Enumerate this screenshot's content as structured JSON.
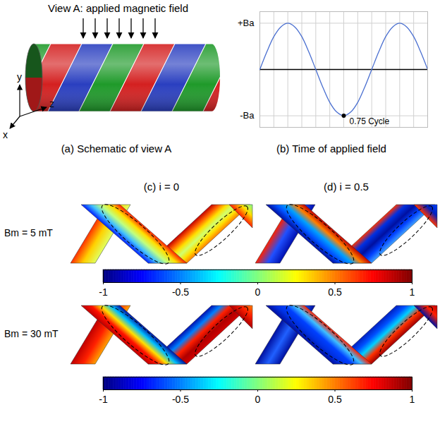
{
  "schematic": {
    "heading": "View A: applied magnetic field",
    "axis_labels": [
      "y",
      "z",
      "x"
    ],
    "caption": "(a) Schematic of view A"
  },
  "chart_data": {
    "type": "line",
    "title": "(b) Time of applied field",
    "x": [
      0,
      0.0625,
      0.125,
      0.1875,
      0.25,
      0.3125,
      0.375,
      0.4375,
      0.5,
      0.5625,
      0.625,
      0.6875,
      0.75,
      0.8125,
      0.875,
      0.9375,
      1,
      1.0625,
      1.125,
      1.1875,
      1.25,
      1.3125,
      1.375,
      1.4375,
      1.5
    ],
    "values": [
      0,
      0.38,
      0.71,
      0.92,
      1,
      0.92,
      0.71,
      0.38,
      0,
      -0.38,
      -0.71,
      -0.92,
      -1,
      -0.92,
      -0.71,
      -0.38,
      0,
      0.38,
      0.71,
      0.92,
      1,
      0.92,
      0.71,
      0.38,
      0
    ],
    "color": "#4a6fd0",
    "xlim": [
      0,
      1.5
    ],
    "ylim": [
      -1.25,
      1.25
    ],
    "xticks": [
      0,
      0.125,
      0.25,
      0.375,
      0.5,
      0.625,
      0.75,
      0.875,
      1,
      1.125,
      1.25,
      1.375,
      1.5
    ],
    "yticks": [
      {
        "value": 1,
        "label": "+Ba"
      },
      {
        "value": -1,
        "label": "-Ba"
      }
    ],
    "grid": true,
    "tick_labels": "y",
    "annotations": [
      {
        "x": 0.75,
        "y": -1,
        "text": "0.75 Cycle"
      }
    ]
  },
  "results": {
    "columns": [
      "(c) i = 0",
      "(d) i = 0.5"
    ],
    "rows": [
      {
        "label": "Bm = 5 mT",
        "colorbar": {
          "range": [
            -1,
            1
          ],
          "ticks": [
            -1,
            -0.5,
            0,
            0.5,
            1
          ]
        }
      },
      {
        "label": "Bm = 30 mT",
        "colorbar": {
          "range": [
            -1,
            1
          ],
          "ticks": [
            -1,
            -0.5,
            0,
            0.5,
            1
          ]
        }
      }
    ]
  }
}
